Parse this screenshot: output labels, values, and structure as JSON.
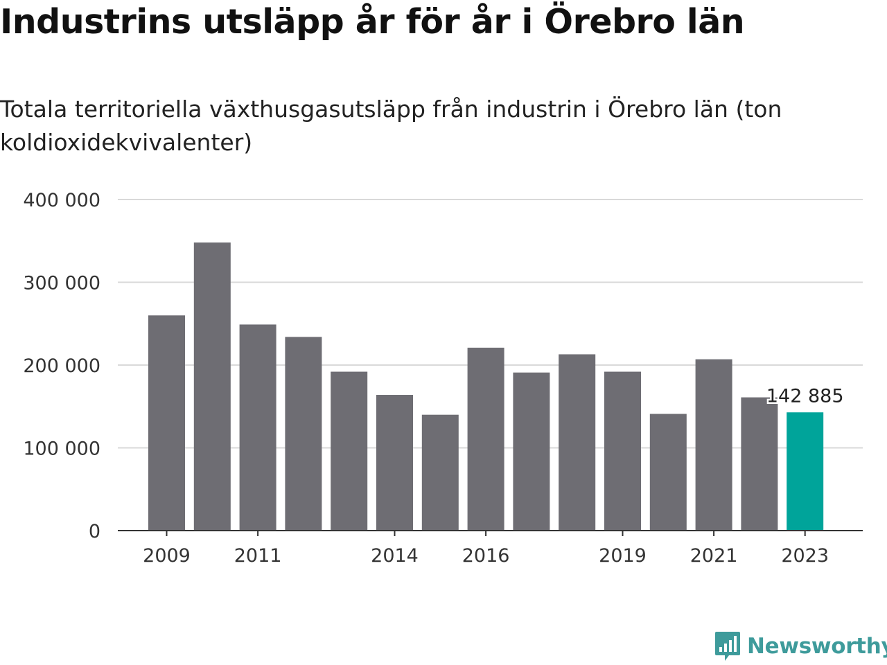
{
  "header": {
    "title": "Industrins utsläpp år för år i Örebro län",
    "subtitle": "Totala territoriella växthusgasutsläpp från industrin i Örebro län (ton koldioxidekvivalenter)"
  },
  "brand": {
    "name": "Newsworthy",
    "logo_icon": "bar-chart-speech-bubble-icon",
    "color": "#3e9b9b"
  },
  "colors": {
    "bar": "#6e6d73",
    "highlight": "#00a49a",
    "grid": "#d9d9d9",
    "axis": "#333333",
    "tick_text": "#333333"
  },
  "chart_data": {
    "type": "bar",
    "title": "Industrins utsläpp år för år i Örebro län",
    "subtitle": "Totala territoriella växthusgasutsläpp från industrin i Örebro län (ton koldioxidekvivalenter)",
    "xlabel": "",
    "ylabel": "",
    "categories": [
      "2009",
      "2010",
      "2011",
      "2012",
      "2013",
      "2014",
      "2015",
      "2016",
      "2017",
      "2018",
      "2019",
      "2020",
      "2021",
      "2022",
      "2023"
    ],
    "values": [
      260000,
      348000,
      249000,
      234000,
      192000,
      164000,
      140000,
      221000,
      191000,
      213000,
      192000,
      141000,
      207000,
      161000,
      142885
    ],
    "highlight_index": 14,
    "highlight_label": "142 885",
    "ylim": [
      0,
      400000
    ],
    "yticks": [
      0,
      100000,
      200000,
      300000,
      400000
    ],
    "ytick_labels": [
      "0",
      "100 000",
      "200 000",
      "300 000",
      "400 000"
    ],
    "xtick_labels": [
      "2009",
      "2011",
      "2014",
      "2016",
      "2019",
      "2021",
      "2023"
    ],
    "grid": true,
    "legend": "none"
  }
}
